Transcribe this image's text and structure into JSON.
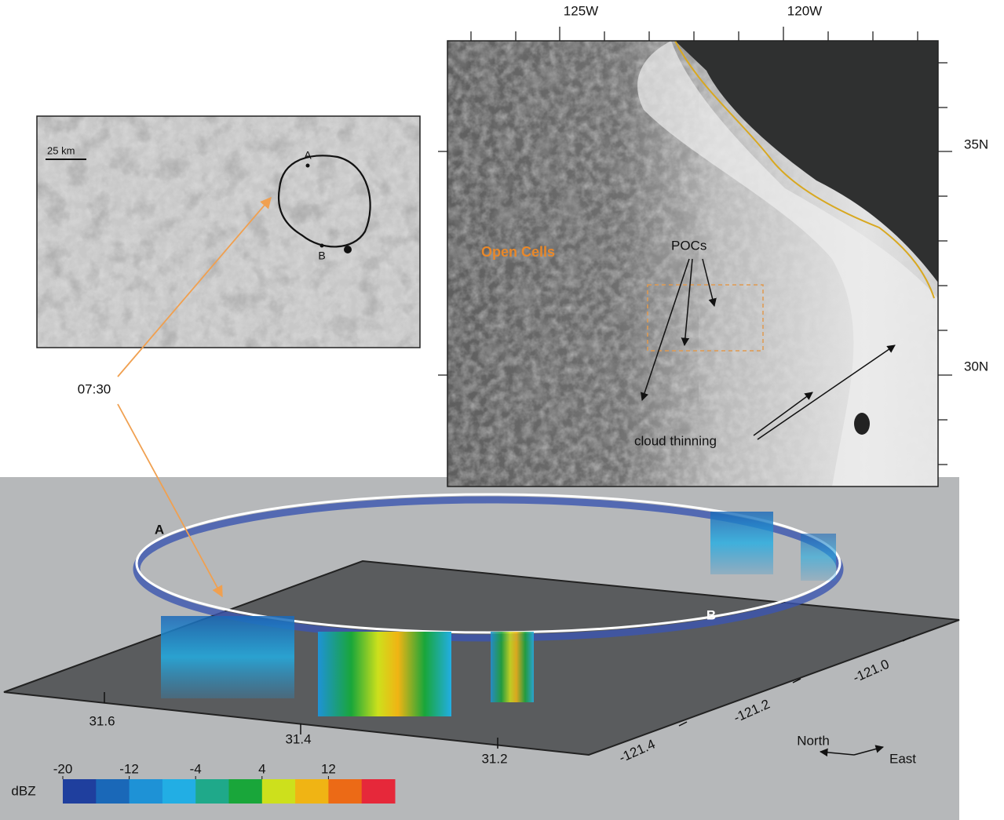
{
  "satellite_map": {
    "lon_labels": [
      "125W",
      "120W"
    ],
    "lat_labels": [
      "35N",
      "30N"
    ],
    "annotations": {
      "open_cells": "Open Cells",
      "pocs": "POCs",
      "cloud_thinning": "cloud thinning"
    }
  },
  "inset": {
    "scale": "25 km",
    "point_a": "A",
    "point_b": "B"
  },
  "time_label": "07:30",
  "radar_3d": {
    "point_a": "A",
    "point_b": "B",
    "lat_labels": [
      "31.6",
      "31.4",
      "31.2"
    ],
    "lon_labels": [
      "-121.4",
      "-121.2",
      "-121.0"
    ],
    "compass": {
      "north": "North",
      "east": "East"
    }
  },
  "colorbar": {
    "label": "dBZ",
    "lim": [
      -20,
      20
    ],
    "ticks": [
      -20,
      -12,
      -4,
      4,
      12
    ],
    "colors": [
      "#1f3f9e",
      "#1a68b8",
      "#1e92d6",
      "#22aee4",
      "#1fa98a",
      "#19a63a",
      "#cde01c",
      "#f0b414",
      "#ec6a16",
      "#e6283a"
    ]
  }
}
